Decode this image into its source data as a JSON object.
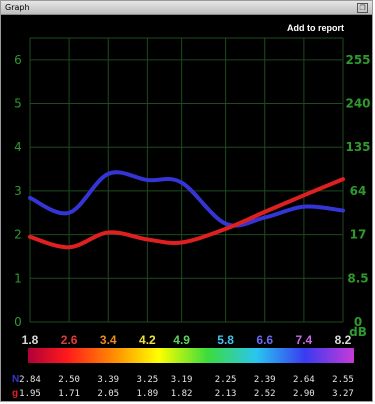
{
  "window": {
    "title": "Graph",
    "restore_icon": "restore-icon",
    "add_to_report": "Add to report"
  },
  "colors": {
    "grid": "#1e4a1e",
    "axis_text": "#2e9a2e",
    "series_n": "#3535d6",
    "series_g": "#e02020"
  },
  "chart_data": {
    "type": "line",
    "x": [
      1.8,
      2.6,
      3.4,
      4.2,
      4.9,
      5.8,
      6.6,
      7.4,
      8.2
    ],
    "x_tick_colors": [
      "#d9d9d9",
      "#e23b3b",
      "#f08a1e",
      "#f2e23a",
      "#5fd35f",
      "#47c3f0",
      "#6a6af2",
      "#c86ae6",
      "#d9d9d9"
    ],
    "xlim": [
      1.8,
      8.2
    ],
    "ylim": [
      0,
      6.5
    ],
    "left_ticks": [
      "0",
      "1",
      "2",
      "3",
      "4",
      "5",
      "6"
    ],
    "right_ticks": [
      "0",
      "8.5",
      "17",
      "64",
      "135",
      "240",
      "255"
    ],
    "right_unit": "dB",
    "grid": true,
    "series": [
      {
        "name": "N",
        "color": "#3535d6",
        "values": [
          2.84,
          2.5,
          3.39,
          3.25,
          3.19,
          2.25,
          2.39,
          2.64,
          2.55
        ]
      },
      {
        "name": "g",
        "color": "#e02020",
        "values": [
          1.95,
          1.71,
          2.05,
          1.89,
          1.82,
          2.13,
          2.52,
          2.9,
          3.27
        ]
      }
    ]
  },
  "table": {
    "rows": [
      {
        "label": "N",
        "label_color": "#3535d6",
        "values": [
          "2.84",
          "2.50",
          "3.39",
          "3.25",
          "3.19",
          "2.25",
          "2.39",
          "2.64",
          "2.55"
        ]
      },
      {
        "label": "g",
        "label_color": "#e02020",
        "values": [
          "1.95",
          "1.71",
          "2.05",
          "1.89",
          "1.82",
          "2.13",
          "2.52",
          "2.90",
          "3.27"
        ]
      }
    ]
  }
}
